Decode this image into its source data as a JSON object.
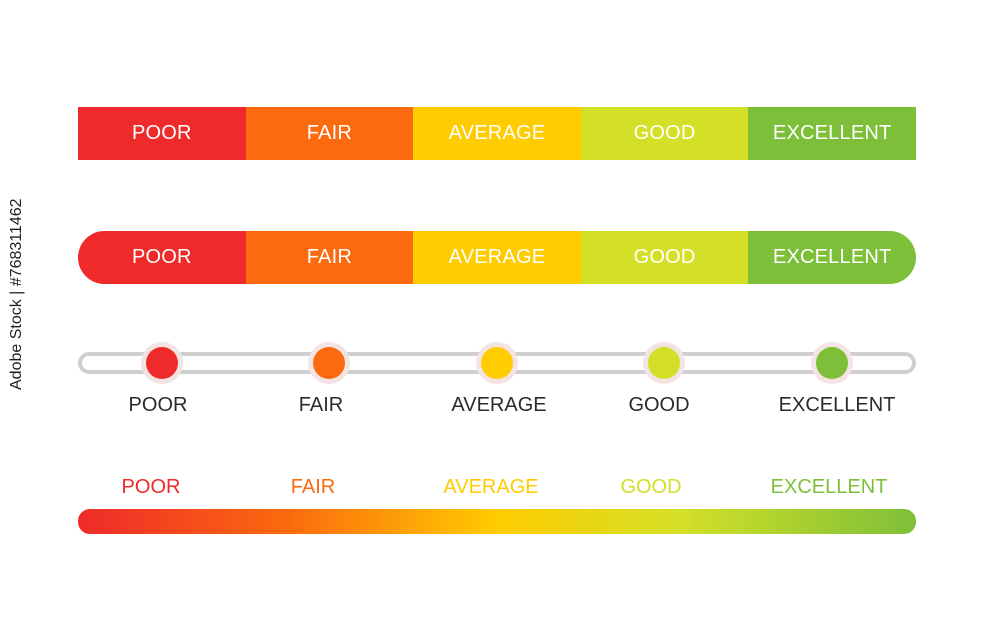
{
  "colors": {
    "poor": "#ee2a2a",
    "fair": "#fb6a0e",
    "average": "#ffcc00",
    "good": "#d3e027",
    "excellent": "#7ebf3a",
    "track": "#cfcfcf"
  },
  "segmented_bar": {
    "labels": [
      "POOR",
      "FAIR",
      "AVERAGE",
      "GOOD",
      "EXCELLENT"
    ]
  },
  "rounded_bar": {
    "labels": [
      "POOR",
      "FAIR",
      "AVERAGE",
      "GOOD",
      "EXCELLENT"
    ]
  },
  "dot_scale": {
    "labels": [
      "POOR",
      "FAIR",
      "AVERAGE",
      "GOOD",
      "EXCELLENT"
    ]
  },
  "gradient_bar": {
    "labels": [
      "POOR",
      "FAIR",
      "AVERAGE",
      "GOOD",
      "EXCELLENT"
    ]
  },
  "side_text": "Adobe Stock | #768311462"
}
